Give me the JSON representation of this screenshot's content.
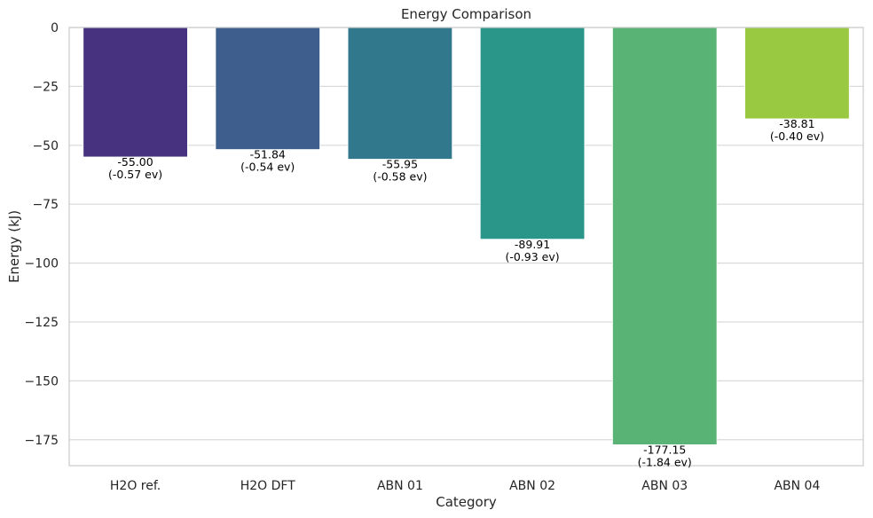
{
  "chart_data": {
    "type": "bar",
    "title": "Energy Comparison",
    "xlabel": "Category",
    "ylabel": "Energy (kJ)",
    "categories": [
      "H2O ref.",
      "H2O DFT",
      "ABN 01",
      "ABN 02",
      "ABN 03",
      "ABN 04"
    ],
    "values": [
      -55.0,
      -51.84,
      -55.95,
      -89.91,
      -177.15,
      -38.81
    ],
    "value_labels": [
      "-55.00",
      "-51.84",
      "-55.95",
      "-89.91",
      "-177.15",
      "-38.81"
    ],
    "ev_labels": [
      "(-0.57 ev)",
      "(-0.54 ev)",
      "(-0.58 ev)",
      "(-0.93 ev)",
      "(-1.84 ev)",
      "(-0.40 ev)"
    ],
    "colors": [
      "#46327e",
      "#3e5f8d",
      "#31788d",
      "#2a968a",
      "#58b374",
      "#99c941"
    ],
    "ylim": [
      -186,
      0
    ],
    "yticks": [
      0,
      -25,
      -50,
      -75,
      -100,
      -125,
      -150,
      -175
    ],
    "ytick_labels": [
      "0",
      "−25",
      "−50",
      "−75",
      "−100",
      "−125",
      "−150",
      "−175"
    ],
    "grid": "horizontal",
    "legend": "none"
  }
}
